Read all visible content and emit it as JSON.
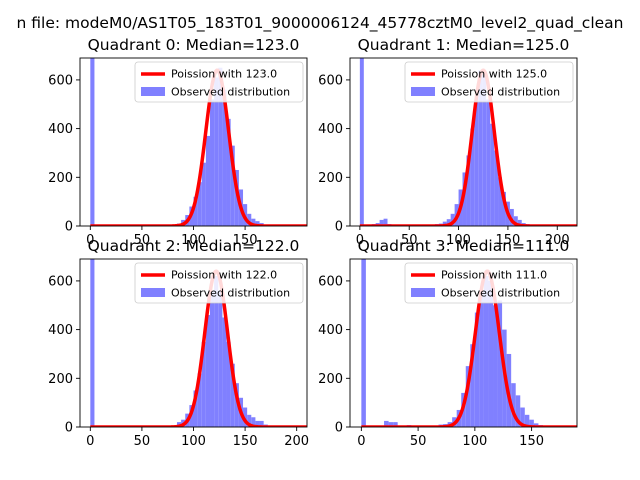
{
  "figure": {
    "suptitle": "n file: modeM0/AS1T05_183T01_9000006124_45778cztM0_level2_quad_clean"
  },
  "colors": {
    "poisson_line": "#ff0000",
    "histogram": "#8080ff"
  },
  "chart_data": [
    {
      "type": "bar",
      "title": "Quadrant 0: Median=123.0",
      "xlim": [
        -10,
        210
      ],
      "ylim": [
        0,
        690
      ],
      "xticks": [
        0,
        50,
        100,
        150
      ],
      "yticks": [
        0,
        200,
        400,
        600
      ],
      "mean": 123,
      "peak": 640,
      "legend": [
        "Poission with 123.0",
        "Observed distribution"
      ],
      "legend_position": "upper right",
      "histogram": {
        "bin_width": 4,
        "bins": [
          [
            0,
            690
          ],
          [
            72,
            2
          ],
          [
            76,
            3
          ],
          [
            80,
            5
          ],
          [
            84,
            10
          ],
          [
            88,
            25
          ],
          [
            92,
            45
          ],
          [
            96,
            80
          ],
          [
            100,
            120
          ],
          [
            104,
            180
          ],
          [
            108,
            260
          ],
          [
            112,
            370
          ],
          [
            116,
            520
          ],
          [
            120,
            610
          ],
          [
            124,
            650
          ],
          [
            128,
            560
          ],
          [
            132,
            440
          ],
          [
            136,
            330
          ],
          [
            140,
            230
          ],
          [
            144,
            150
          ],
          [
            148,
            90
          ],
          [
            152,
            50
          ],
          [
            156,
            30
          ],
          [
            160,
            20
          ],
          [
            164,
            12
          ],
          [
            168,
            6
          ],
          [
            172,
            3
          ]
        ]
      }
    },
    {
      "type": "bar",
      "title": "Quadrant 1: Median=125.0",
      "xlim": [
        -10,
        220
      ],
      "ylim": [
        0,
        690
      ],
      "xticks": [
        0,
        50,
        100,
        150,
        200
      ],
      "yticks": [
        0,
        200,
        400,
        600
      ],
      "mean": 125,
      "peak": 640,
      "legend": [
        "Poission with 125.0",
        "Observed distribution"
      ],
      "legend_position": "upper right",
      "histogram": {
        "bin_width": 4,
        "bins": [
          [
            0,
            690
          ],
          [
            8,
            5
          ],
          [
            12,
            8
          ],
          [
            16,
            12
          ],
          [
            20,
            25
          ],
          [
            24,
            30
          ],
          [
            28,
            8
          ],
          [
            36,
            4
          ],
          [
            44,
            3
          ],
          [
            52,
            4
          ],
          [
            60,
            5
          ],
          [
            68,
            5
          ],
          [
            72,
            6
          ],
          [
            76,
            8
          ],
          [
            80,
            10
          ],
          [
            84,
            18
          ],
          [
            88,
            28
          ],
          [
            92,
            50
          ],
          [
            96,
            90
          ],
          [
            100,
            150
          ],
          [
            104,
            220
          ],
          [
            108,
            290
          ],
          [
            112,
            400
          ],
          [
            116,
            520
          ],
          [
            120,
            640
          ],
          [
            124,
            630
          ],
          [
            128,
            520
          ],
          [
            132,
            420
          ],
          [
            136,
            310
          ],
          [
            140,
            200
          ],
          [
            144,
            140
          ],
          [
            148,
            100
          ],
          [
            152,
            70
          ],
          [
            156,
            40
          ],
          [
            160,
            25
          ],
          [
            164,
            12
          ],
          [
            168,
            8
          ],
          [
            172,
            5
          ],
          [
            176,
            3
          ]
        ]
      }
    },
    {
      "type": "bar",
      "title": "Quadrant 2: Median=122.0",
      "xlim": [
        -10,
        210
      ],
      "ylim": [
        0,
        690
      ],
      "xticks": [
        0,
        50,
        100,
        150,
        200
      ],
      "yticks": [
        0,
        200,
        400,
        600
      ],
      "mean": 122,
      "peak": 640,
      "legend": [
        "Poission with 122.0",
        "Observed distribution"
      ],
      "legend_position": "upper right",
      "histogram": {
        "bin_width": 4,
        "bins": [
          [
            0,
            690
          ],
          [
            80,
            5
          ],
          [
            84,
            20
          ],
          [
            88,
            30
          ],
          [
            92,
            55
          ],
          [
            96,
            90
          ],
          [
            100,
            150
          ],
          [
            104,
            220
          ],
          [
            108,
            350
          ],
          [
            112,
            460
          ],
          [
            116,
            560
          ],
          [
            120,
            620
          ],
          [
            124,
            560
          ],
          [
            128,
            450
          ],
          [
            132,
            350
          ],
          [
            136,
            260
          ],
          [
            140,
            180
          ],
          [
            144,
            120
          ],
          [
            148,
            80
          ],
          [
            152,
            50
          ],
          [
            156,
            40
          ],
          [
            160,
            25
          ],
          [
            164,
            25
          ],
          [
            168,
            10
          ],
          [
            172,
            6
          ],
          [
            176,
            4
          ],
          [
            180,
            3
          ]
        ]
      }
    },
    {
      "type": "bar",
      "title": "Quadrant 3: Median=111.0",
      "xlim": [
        -10,
        190
      ],
      "ylim": [
        0,
        690
      ],
      "xticks": [
        0,
        50,
        100,
        150
      ],
      "yticks": [
        0,
        200,
        400,
        600
      ],
      "mean": 111,
      "peak": 640,
      "legend": [
        "Poission with 111.0",
        "Observed distribution"
      ],
      "legend_position": "upper right",
      "histogram": {
        "bin_width": 4,
        "bins": [
          [
            0,
            690
          ],
          [
            20,
            25
          ],
          [
            24,
            20
          ],
          [
            28,
            20
          ],
          [
            40,
            8
          ],
          [
            48,
            6
          ],
          [
            56,
            6
          ],
          [
            60,
            5
          ],
          [
            64,
            6
          ],
          [
            68,
            10
          ],
          [
            72,
            12
          ],
          [
            76,
            20
          ],
          [
            80,
            40
          ],
          [
            84,
            70
          ],
          [
            88,
            140
          ],
          [
            92,
            250
          ],
          [
            96,
            340
          ],
          [
            100,
            470
          ],
          [
            104,
            560
          ],
          [
            108,
            620
          ],
          [
            112,
            600
          ],
          [
            116,
            500
          ],
          [
            120,
            520
          ],
          [
            124,
            400
          ],
          [
            128,
            300
          ],
          [
            132,
            180
          ],
          [
            136,
            130
          ],
          [
            140,
            80
          ],
          [
            144,
            50
          ],
          [
            148,
            30
          ],
          [
            152,
            15
          ],
          [
            156,
            8
          ],
          [
            160,
            4
          ]
        ]
      }
    }
  ]
}
